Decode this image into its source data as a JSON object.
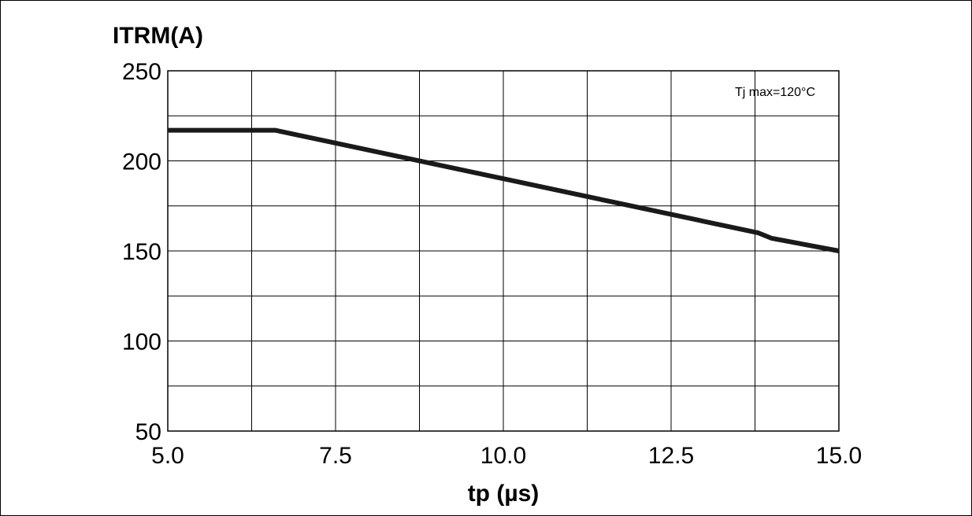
{
  "chart_data": {
    "type": "line",
    "ylabel": "ITRM(A)",
    "xlabel": "tp (µs)",
    "annotation": "Tj max=120°C",
    "xlim": [
      5.0,
      15.0
    ],
    "ylim": [
      50,
      250
    ],
    "x_ticks": [
      "5.0",
      "7.5",
      "10.0",
      "12.5",
      "15.0"
    ],
    "x_tick_values": [
      5.0,
      7.5,
      10.0,
      12.5,
      15.0
    ],
    "y_ticks": [
      "250",
      "200",
      "150",
      "100",
      "50"
    ],
    "y_tick_values": [
      250,
      200,
      150,
      100,
      50
    ],
    "x_grid": [
      5.0,
      6.25,
      7.5,
      8.75,
      10.0,
      11.25,
      12.5,
      13.75,
      15.0
    ],
    "y_grid": [
      50,
      75,
      100,
      125,
      150,
      175,
      200,
      225,
      250
    ],
    "grid": true,
    "line_color": "#1a1a1a",
    "series": [
      {
        "x": [
          5.0,
          6.6,
          13.8,
          14.0,
          15.0
        ],
        "y": [
          217,
          217,
          160,
          157,
          150
        ]
      }
    ]
  }
}
